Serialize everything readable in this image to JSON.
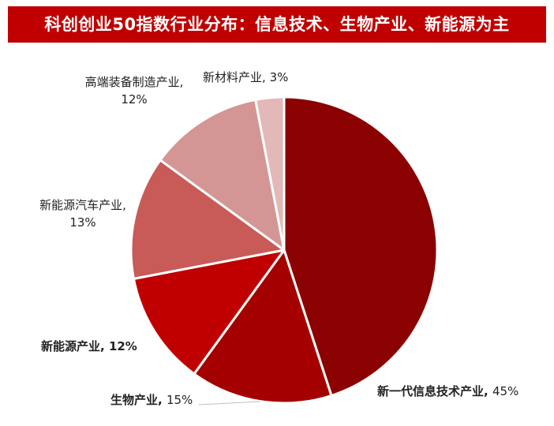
{
  "header": {
    "title": "科创创业50指数行业分布：信息技术、生物产业、新能源为主"
  },
  "chart_data": {
    "type": "pie",
    "title": "科创创业50指数行业分布：信息技术、生物产业、新能源为主",
    "start": "12 o'clock",
    "direction": "clockwise",
    "slices": [
      {
        "name": "新一代信息技术产业",
        "value": 45,
        "value_label": "45%",
        "color": "#8b0000"
      },
      {
        "name": "生物产业",
        "value": 15,
        "value_label": "15%",
        "color": "#a50000"
      },
      {
        "name": "新能源产业",
        "value": 12,
        "value_label": "12%",
        "color": "#c00000"
      },
      {
        "name": "新能源汽车产业",
        "value": 13,
        "value_label": "13%",
        "color": "#c85a57"
      },
      {
        "name": "高端装备制造产业",
        "value": 12,
        "value_label": "12%",
        "color": "#d49694"
      },
      {
        "name": "新材料产业",
        "value": 3,
        "value_label": "3%",
        "color": "#e2b9b8"
      }
    ]
  }
}
